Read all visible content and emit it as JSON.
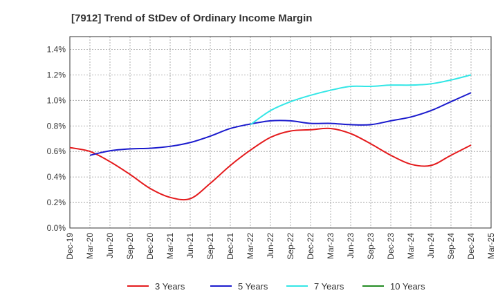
{
  "chart_data": {
    "type": "line",
    "title": "[7912]  Trend of StDev of Ordinary Income Margin",
    "xlabel": "",
    "ylabel": "",
    "x": [
      "Dec-19",
      "Mar-20",
      "Jun-20",
      "Sep-20",
      "Dec-20",
      "Mar-21",
      "Jun-21",
      "Sep-21",
      "Dec-21",
      "Mar-22",
      "Jun-22",
      "Sep-22",
      "Dec-22",
      "Mar-23",
      "Jun-23",
      "Sep-23",
      "Dec-23",
      "Mar-24",
      "Jun-24",
      "Sep-24",
      "Dec-24",
      "Mar-25"
    ],
    "ylim": [
      0,
      1.5
    ],
    "yticks": [
      "0.0%",
      "0.2%",
      "0.4%",
      "0.6%",
      "0.8%",
      "1.0%",
      "1.2%",
      "1.4%"
    ],
    "grid": true,
    "legend_position": "bottom",
    "series": [
      {
        "name": "3 Years",
        "color": "#e41a1c",
        "values": [
          0.63,
          0.6,
          0.52,
          0.42,
          0.31,
          0.24,
          0.23,
          0.35,
          0.49,
          0.61,
          0.71,
          0.76,
          0.77,
          0.78,
          0.74,
          0.66,
          0.57,
          0.5,
          0.49,
          0.57,
          0.65,
          null
        ]
      },
      {
        "name": "5 Years",
        "color": "#1a1acd",
        "values": [
          null,
          0.57,
          0.605,
          0.62,
          0.625,
          0.64,
          0.67,
          0.72,
          0.78,
          0.815,
          0.84,
          0.84,
          0.82,
          0.82,
          0.81,
          0.81,
          0.84,
          0.87,
          0.92,
          0.99,
          1.06,
          null
        ]
      },
      {
        "name": "7 Years",
        "color": "#33e6e6",
        "values": [
          null,
          null,
          null,
          null,
          null,
          null,
          null,
          null,
          null,
          0.81,
          0.92,
          0.99,
          1.04,
          1.08,
          1.11,
          1.11,
          1.12,
          1.12,
          1.13,
          1.16,
          1.2,
          null
        ]
      },
      {
        "name": "10 Years",
        "color": "#228b22",
        "values": [
          null,
          null,
          null,
          null,
          null,
          null,
          null,
          null,
          null,
          null,
          null,
          null,
          null,
          null,
          null,
          null,
          null,
          null,
          null,
          null,
          null,
          null
        ]
      }
    ]
  }
}
